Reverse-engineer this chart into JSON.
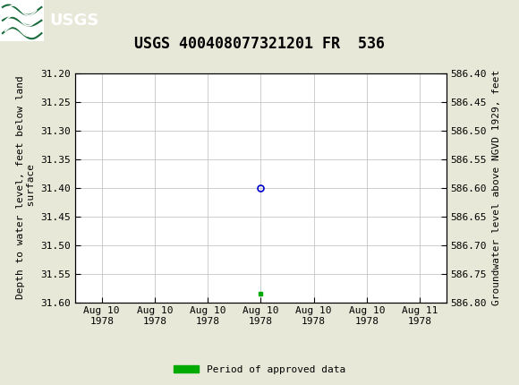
{
  "title": "USGS 400408077321201 FR  536",
  "ylabel_left": "Depth to water level, feet below land\n surface",
  "ylabel_right": "Groundwater level above NGVD 1929, feet",
  "ylim_left": [
    31.2,
    31.6
  ],
  "ylim_right": [
    586.4,
    586.8
  ],
  "yticks_left": [
    31.2,
    31.25,
    31.3,
    31.35,
    31.4,
    31.45,
    31.5,
    31.55,
    31.6
  ],
  "yticks_right": [
    586.8,
    586.75,
    586.7,
    586.65,
    586.6,
    586.55,
    586.5,
    586.45,
    586.4
  ],
  "xtick_labels": [
    "Aug 10\n1978",
    "Aug 10\n1978",
    "Aug 10\n1978",
    "Aug 10\n1978",
    "Aug 10\n1978",
    "Aug 10\n1978",
    "Aug 11\n1978"
  ],
  "data_x": [
    3.0
  ],
  "data_y": [
    31.4
  ],
  "green_square_x": [
    3.0
  ],
  "green_square_y": [
    31.585
  ],
  "header_color": "#1a6b3c",
  "background_color": "#e8e8d8",
  "plot_bg_color": "#ffffff",
  "grid_color": "#bbbbbb",
  "point_color": "#0000cc",
  "approved_color": "#00aa00",
  "title_fontsize": 12,
  "axis_label_fontsize": 8,
  "tick_fontsize": 8
}
